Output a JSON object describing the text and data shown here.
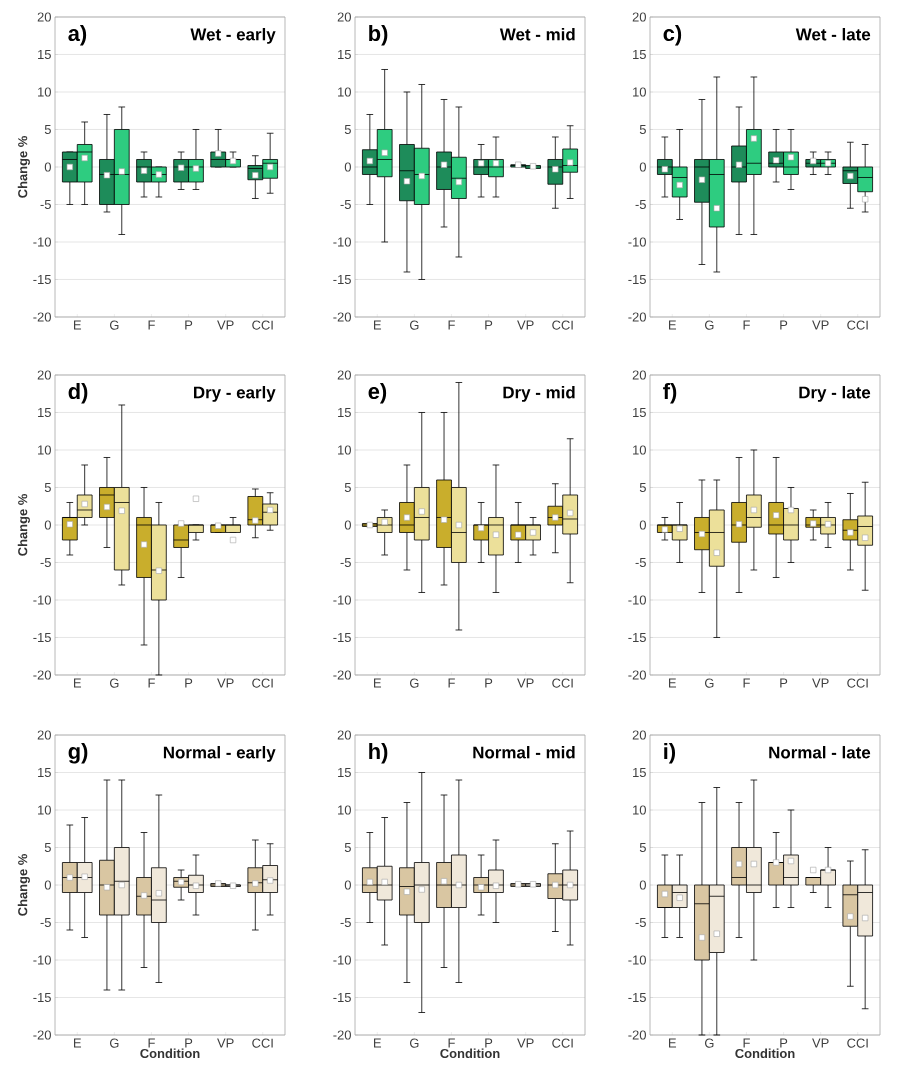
{
  "chart_data": [
    {
      "type": "box",
      "title": "Wet - early",
      "annotations": [
        "a)"
      ],
      "ylabel": "Change %",
      "categories": [
        "E",
        "G",
        "F",
        "P",
        "VP",
        "CCI"
      ],
      "ylim": [
        -20,
        20
      ],
      "yticks": [
        -20,
        -15,
        -10,
        -5,
        0,
        5,
        10,
        15,
        20
      ],
      "grid": "y",
      "series": [
        {
          "color": "#1e8c5a",
          "boxes": [
            {
              "low": -5,
              "q1": -2,
              "median": 1,
              "q3": 2,
              "high": 2,
              "mean": 0
            },
            {
              "low": -6,
              "q1": -5,
              "median": -1,
              "q3": 1,
              "high": 7,
              "mean": -1.1
            },
            {
              "low": -4,
              "q1": -2,
              "median": 0,
              "q3": 1,
              "high": 2,
              "mean": -0.5
            },
            {
              "low": -3,
              "q1": -2,
              "median": 0,
              "q3": 1,
              "high": 2,
              "mean": -0.1
            },
            {
              "low": 0,
              "q1": 0,
              "median": 1,
              "q3": 2,
              "high": 5,
              "mean": 1.8
            },
            {
              "low": -4.2,
              "q1": -1.7,
              "median": -0.2,
              "q3": 0.2,
              "high": 1.5,
              "mean": -1.1
            }
          ]
        },
        {
          "color": "#2ecc80",
          "boxes": [
            {
              "low": -5,
              "q1": -2,
              "median": 2,
              "q3": 3,
              "high": 6,
              "mean": 1.2
            },
            {
              "low": -9,
              "q1": -5,
              "median": -1,
              "q3": 5,
              "high": 8,
              "mean": -0.6
            },
            {
              "low": -4,
              "q1": -2,
              "median": -1,
              "q3": 0,
              "high": 0,
              "mean": -1
            },
            {
              "low": -3,
              "q1": -2,
              "median": 0,
              "q3": 1,
              "high": 5,
              "mean": -0.2
            },
            {
              "low": 0,
              "q1": 0,
              "median": 1,
              "q3": 1,
              "high": 2,
              "mean": 0.8
            },
            {
              "low": -3.5,
              "q1": -1.5,
              "median": 0.5,
              "q3": 1,
              "high": 4.5,
              "mean": 0
            }
          ]
        }
      ]
    },
    {
      "type": "box",
      "title": "Wet - mid",
      "annotations": [
        "b)"
      ],
      "categories": [
        "E",
        "G",
        "F",
        "P",
        "VP",
        "CCI"
      ],
      "ylim": [
        -20,
        20
      ],
      "yticks": [
        -20,
        -15,
        -10,
        -5,
        0,
        5,
        10,
        15,
        20
      ],
      "grid": "y",
      "series": [
        {
          "color": "#1e8c5a",
          "boxes": [
            {
              "low": -5,
              "q1": -1,
              "median": 0,
              "q3": 2.3,
              "high": 7,
              "mean": 0.8
            },
            {
              "low": -14,
              "q1": -4.5,
              "median": -0.5,
              "q3": 3,
              "high": 10,
              "mean": -1.9
            },
            {
              "low": -8,
              "q1": -3,
              "median": 0,
              "q3": 2,
              "high": 9,
              "mean": 0.3
            },
            {
              "low": -4,
              "q1": -1,
              "median": 0,
              "q3": 1,
              "high": 3,
              "mean": 0.5
            },
            {
              "low": 0,
              "q1": 0,
              "median": 0.2,
              "q3": 0.3,
              "high": 0.3,
              "mean": 0.3
            },
            {
              "low": -5.5,
              "q1": -2.3,
              "median": 0,
              "q3": 1,
              "high": 4,
              "mean": -0.3
            }
          ]
        },
        {
          "color": "#2ecc80",
          "boxes": [
            {
              "low": -10,
              "q1": -1.3,
              "median": 1,
              "q3": 5,
              "high": 13,
              "mean": 1.9
            },
            {
              "low": -15,
              "q1": -5,
              "median": -1,
              "q3": 2.5,
              "high": 11,
              "mean": -1.2
            },
            {
              "low": -12,
              "q1": -4.2,
              "median": -1.5,
              "q3": 1.3,
              "high": 8,
              "mean": -2
            },
            {
              "low": -4,
              "q1": -1.3,
              "median": 0,
              "q3": 1,
              "high": 4,
              "mean": 0.5
            },
            {
              "low": -0.2,
              "q1": -0.2,
              "median": 0,
              "q3": 0.2,
              "high": 0.2,
              "mean": 0.1
            },
            {
              "low": -4.2,
              "q1": -0.7,
              "median": 0.2,
              "q3": 2.4,
              "high": 5.5,
              "mean": 0.6
            }
          ]
        }
      ]
    },
    {
      "type": "box",
      "title": "Wet - late",
      "annotations": [
        "c)"
      ],
      "categories": [
        "E",
        "G",
        "F",
        "P",
        "VP",
        "CCI"
      ],
      "ylim": [
        -20,
        20
      ],
      "yticks": [
        -20,
        -15,
        -10,
        -5,
        0,
        5,
        10,
        15,
        20
      ],
      "grid": "y",
      "series": [
        {
          "color": "#1e8c5a",
          "boxes": [
            {
              "low": -4,
              "q1": -1,
              "median": 0,
              "q3": 1,
              "high": 4,
              "mean": -0.3
            },
            {
              "low": -13,
              "q1": -4.7,
              "median": 0,
              "q3": 1,
              "high": 9,
              "mean": -1.7
            },
            {
              "low": -9,
              "q1": -2,
              "median": 0,
              "q3": 2.8,
              "high": 8,
              "mean": 0.3
            },
            {
              "low": -2,
              "q1": 0,
              "median": 0.5,
              "q3": 2,
              "high": 5,
              "mean": 0.9
            },
            {
              "low": -1,
              "q1": 0,
              "median": 0.5,
              "q3": 1,
              "high": 2,
              "mean": 0.8
            },
            {
              "low": -5.5,
              "q1": -2.2,
              "median": -0.5,
              "q3": 0,
              "high": 3.3,
              "mean": -1.2
            }
          ]
        },
        {
          "color": "#2ecc80",
          "boxes": [
            {
              "low": -7,
              "q1": -4,
              "median": -1.4,
              "q3": 0,
              "high": 5,
              "mean": -2.4
            },
            {
              "low": -14,
              "q1": -8,
              "median": -1,
              "q3": 1,
              "high": 12,
              "mean": -5.5
            },
            {
              "low": -9,
              "q1": -1,
              "median": 0.5,
              "q3": 5,
              "high": 12,
              "mean": 3.8
            },
            {
              "low": -3,
              "q1": -1,
              "median": 0,
              "q3": 2,
              "high": 5,
              "mean": 1.3
            },
            {
              "low": -1,
              "q1": 0,
              "median": 0.5,
              "q3": 1,
              "high": 2,
              "mean": 0.5
            },
            {
              "low": -6,
              "q1": -3.3,
              "median": -1.4,
              "q3": 0,
              "high": 3,
              "mean": -4.3
            }
          ]
        }
      ]
    },
    {
      "type": "box",
      "title": "Dry - early",
      "annotations": [
        "d)"
      ],
      "ylabel": "Change %",
      "categories": [
        "E",
        "G",
        "F",
        "P",
        "VP",
        "CCI"
      ],
      "ylim": [
        -20,
        20
      ],
      "yticks": [
        -20,
        -15,
        -10,
        -5,
        0,
        5,
        10,
        15,
        20
      ],
      "grid": "y",
      "series": [
        {
          "color": "#c9ae2c",
          "boxes": [
            {
              "low": -4,
              "q1": -2,
              "median": 1,
              "q3": 1,
              "high": 3,
              "mean": 0.1
            },
            {
              "low": -3,
              "q1": 1,
              "median": 4,
              "q3": 5,
              "high": 9,
              "mean": 2.4
            },
            {
              "low": -16,
              "q1": -7,
              "median": 0,
              "q3": 1,
              "high": 5,
              "mean": -2.6
            },
            {
              "low": -7,
              "q1": -3,
              "median": -2,
              "q3": 0,
              "high": 0,
              "mean": 0.2
            },
            {
              "low": -1,
              "q1": -1,
              "median": 0,
              "q3": 0,
              "high": 0,
              "mean": -0.1
            },
            {
              "low": -1.7,
              "q1": 0,
              "median": 0.7,
              "q3": 3.8,
              "high": 4.8,
              "mean": 0.6
            }
          ]
        },
        {
          "color": "#ece09a",
          "boxes": [
            {
              "low": 0,
              "q1": 1,
              "median": 2,
              "q3": 4,
              "high": 8,
              "mean": 2.8
            },
            {
              "low": -8,
              "q1": -6,
              "median": 3,
              "q3": 5,
              "high": 16,
              "mean": 1.9
            },
            {
              "low": -20,
              "q1": -10,
              "median": -6,
              "q3": 0,
              "high": 3,
              "mean": -6.1
            },
            {
              "low": -2,
              "q1": -1,
              "median": 0,
              "q3": 0,
              "high": 0,
              "mean": 3.5
            },
            {
              "low": -1,
              "q1": -1,
              "median": 0,
              "q3": 0,
              "high": 1,
              "mean": -2
            },
            {
              "low": -0.7,
              "q1": 0,
              "median": 1.7,
              "q3": 2.8,
              "high": 4.3,
              "mean": 2
            }
          ]
        }
      ]
    },
    {
      "type": "box",
      "title": "Dry - mid",
      "annotations": [
        "e)"
      ],
      "categories": [
        "E",
        "G",
        "F",
        "P",
        "VP",
        "CCI"
      ],
      "ylim": [
        -20,
        20
      ],
      "yticks": [
        -20,
        -15,
        -10,
        -5,
        0,
        5,
        10,
        15,
        20
      ],
      "grid": "y",
      "series": [
        {
          "color": "#c9ae2c",
          "boxes": [
            {
              "low": -0.2,
              "q1": -0.2,
              "median": 0,
              "q3": 0.2,
              "high": 0.2,
              "mean": 0
            },
            {
              "low": -6,
              "q1": -1,
              "median": 0,
              "q3": 3,
              "high": 8,
              "mean": 1
            },
            {
              "low": -8,
              "q1": -3,
              "median": 1,
              "q3": 6,
              "high": 15,
              "mean": 0.7
            },
            {
              "low": -5,
              "q1": -2,
              "median": 0,
              "q3": 0,
              "high": 3,
              "mean": -0.4
            },
            {
              "low": -5,
              "q1": -2,
              "median": 0,
              "q3": 0,
              "high": 3,
              "mean": -1.3
            },
            {
              "low": -3.7,
              "q1": 0,
              "median": 1,
              "q3": 2.5,
              "high": 5.5,
              "mean": 1
            }
          ]
        },
        {
          "color": "#ece09a",
          "boxes": [
            {
              "low": -4,
              "q1": -1,
              "median": 0,
              "q3": 1,
              "high": 2,
              "mean": 0.4
            },
            {
              "low": -9,
              "q1": -2,
              "median": 1,
              "q3": 5,
              "high": 15,
              "mean": 1.8
            },
            {
              "low": -14,
              "q1": -5,
              "median": -1,
              "q3": 5,
              "high": 19,
              "mean": 0
            },
            {
              "low": -9,
              "q1": -4,
              "median": 0,
              "q3": 1,
              "high": 8,
              "mean": -1.3
            },
            {
              "low": -4,
              "q1": -2,
              "median": 0,
              "q3": 0,
              "high": 1,
              "mean": -1
            },
            {
              "low": -7.7,
              "q1": -1.2,
              "median": 0.8,
              "q3": 4,
              "high": 11.5,
              "mean": 1.6
            }
          ]
        }
      ]
    },
    {
      "type": "box",
      "title": "Dry - late",
      "annotations": [
        "f)"
      ],
      "categories": [
        "E",
        "G",
        "F",
        "P",
        "VP",
        "CCI"
      ],
      "ylim": [
        -20,
        20
      ],
      "yticks": [
        -20,
        -15,
        -10,
        -5,
        0,
        5,
        10,
        15,
        20
      ],
      "grid": "y",
      "series": [
        {
          "color": "#c9ae2c",
          "boxes": [
            {
              "low": -2,
              "q1": -1,
              "median": 0,
              "q3": 0,
              "high": 1,
              "mean": -0.6
            },
            {
              "low": -9,
              "q1": -3.3,
              "median": -1,
              "q3": 1,
              "high": 6,
              "mean": -1.2
            },
            {
              "low": -9,
              "q1": -2.3,
              "median": 0,
              "q3": 3,
              "high": 9,
              "mean": 0.1
            },
            {
              "low": -7,
              "q1": -1.2,
              "median": 0,
              "q3": 3,
              "high": 9,
              "mean": 1.3
            },
            {
              "low": -2,
              "q1": -0.3,
              "median": 0,
              "q3": 1,
              "high": 2,
              "mean": 0.2
            },
            {
              "low": -6,
              "q1": -2,
              "median": -0.7,
              "q3": 0.7,
              "high": 4.2,
              "mean": -1
            }
          ]
        },
        {
          "color": "#ece09a",
          "boxes": [
            {
              "low": -5,
              "q1": -2,
              "median": 0,
              "q3": 0,
              "high": 3,
              "mean": -0.5
            },
            {
              "low": -15,
              "q1": -5.5,
              "median": -1,
              "q3": 2,
              "high": 6,
              "mean": -3.7
            },
            {
              "low": -6,
              "q1": -0.3,
              "median": 1,
              "q3": 4,
              "high": 10,
              "mean": 2
            },
            {
              "low": -5,
              "q1": -2,
              "median": 0,
              "q3": 2.2,
              "high": 5,
              "mean": 2
            },
            {
              "low": -3,
              "q1": -1.2,
              "median": 0,
              "q3": 1,
              "high": 3,
              "mean": 0.1
            },
            {
              "low": -8.7,
              "q1": -2.7,
              "median": -0.2,
              "q3": 1.2,
              "high": 5.7,
              "mean": -1.7
            }
          ]
        }
      ]
    },
    {
      "type": "box",
      "title": "Normal - early",
      "annotations": [
        "g)"
      ],
      "ylabel": "Change %",
      "xlabel": "Condition",
      "categories": [
        "E",
        "G",
        "F",
        "P",
        "VP",
        "CCI"
      ],
      "ylim": [
        -20,
        20
      ],
      "yticks": [
        -20,
        -15,
        -10,
        -5,
        0,
        5,
        10,
        15,
        20
      ],
      "grid": "y",
      "series": [
        {
          "color": "#d9c6a2",
          "boxes": [
            {
              "low": -6,
              "q1": -1,
              "median": 1,
              "q3": 3,
              "high": 8,
              "mean": 1
            },
            {
              "low": -14,
              "q1": -4,
              "median": 0,
              "q3": 3.3,
              "high": 14,
              "mean": -0.3
            },
            {
              "low": -11,
              "q1": -4,
              "median": -1.5,
              "q3": 1,
              "high": 7,
              "mean": -1.4
            },
            {
              "low": -2,
              "q1": -0.3,
              "median": 0.5,
              "q3": 1,
              "high": 2,
              "mean": 0.4
            },
            {
              "low": -0.2,
              "q1": -0.2,
              "median": 0,
              "q3": 0.2,
              "high": 0.2,
              "mean": 0.2
            },
            {
              "low": -6,
              "q1": -1,
              "median": 0.3,
              "q3": 2.3,
              "high": 6,
              "mean": 0.2
            }
          ]
        },
        {
          "color": "#f0e8da",
          "boxes": [
            {
              "low": -7,
              "q1": -1,
              "median": 1,
              "q3": 3,
              "high": 9,
              "mean": 1.1
            },
            {
              "low": -14,
              "q1": -4,
              "median": 0.5,
              "q3": 5,
              "high": 14,
              "mean": 0
            },
            {
              "low": -13,
              "q1": -5,
              "median": -2,
              "q3": 2.3,
              "high": 12,
              "mean": -1.1
            },
            {
              "low": -4,
              "q1": -1,
              "median": 0,
              "q3": 1.3,
              "high": 4,
              "mean": -0.1
            },
            {
              "low": -0.2,
              "q1": -0.2,
              "median": 0,
              "q3": 0,
              "high": 0,
              "mean": -0.1
            },
            {
              "low": -4,
              "q1": -1,
              "median": 0.7,
              "q3": 2.6,
              "high": 5.5,
              "mean": 0.6
            }
          ]
        }
      ]
    },
    {
      "type": "box",
      "title": "Normal - mid",
      "annotations": [
        "h)"
      ],
      "xlabel": "Condition",
      "categories": [
        "E",
        "G",
        "F",
        "P",
        "VP",
        "CCI"
      ],
      "ylim": [
        -20,
        20
      ],
      "yticks": [
        -20,
        -15,
        -10,
        -5,
        0,
        5,
        10,
        15,
        20
      ],
      "grid": "y",
      "series": [
        {
          "color": "#d9c6a2",
          "boxes": [
            {
              "low": -5,
              "q1": -1,
              "median": 0,
              "q3": 2.3,
              "high": 7,
              "mean": 0.4
            },
            {
              "low": -13,
              "q1": -4,
              "median": -0.2,
              "q3": 2.3,
              "high": 11,
              "mean": -0.9
            },
            {
              "low": -11,
              "q1": -3,
              "median": 0,
              "q3": 3,
              "high": 12,
              "mean": 0.5
            },
            {
              "low": -4,
              "q1": -1,
              "median": 0,
              "q3": 1,
              "high": 4,
              "mean": -0.3
            },
            {
              "low": -0.2,
              "q1": -0.2,
              "median": 0,
              "q3": 0.2,
              "high": 0.2,
              "mean": 0.1
            },
            {
              "low": -6.2,
              "q1": -1.8,
              "median": 0,
              "q3": 1.5,
              "high": 5.5,
              "mean": 0
            }
          ]
        },
        {
          "color": "#f0e8da",
          "boxes": [
            {
              "low": -8,
              "q1": -2,
              "median": 0,
              "q3": 2.5,
              "high": 9,
              "mean": 0.4
            },
            {
              "low": -17,
              "q1": -5,
              "median": 0,
              "q3": 3,
              "high": 15,
              "mean": -0.6
            },
            {
              "low": -13,
              "q1": -3,
              "median": 0,
              "q3": 4,
              "high": 14,
              "mean": 0
            },
            {
              "low": -5,
              "q1": -1,
              "median": 0,
              "q3": 2,
              "high": 6,
              "mean": -0.1
            },
            {
              "low": -0.2,
              "q1": -0.2,
              "median": 0,
              "q3": 0.2,
              "high": 0.2,
              "mean": 0.1
            },
            {
              "low": -8,
              "q1": -2,
              "median": 0,
              "q3": 2,
              "high": 7.2,
              "mean": 0
            }
          ]
        }
      ]
    },
    {
      "type": "box",
      "title": "Normal - late",
      "annotations": [
        "i)"
      ],
      "xlabel": "Condition",
      "categories": [
        "E",
        "G",
        "F",
        "P",
        "VP",
        "CCI"
      ],
      "ylim": [
        -20,
        20
      ],
      "yticks": [
        -20,
        -15,
        -10,
        -5,
        0,
        5,
        10,
        15,
        20
      ],
      "grid": "y",
      "series": [
        {
          "color": "#d9c6a2",
          "boxes": [
            {
              "low": -7,
              "q1": -3,
              "median": -3,
              "q3": 0,
              "high": 4,
              "mean": -1.2
            },
            {
              "low": -20,
              "q1": -10,
              "median": -2.5,
              "q3": 0,
              "high": 11,
              "mean": -7
            },
            {
              "low": -7,
              "q1": 0,
              "median": 1,
              "q3": 5,
              "high": 11,
              "mean": 2.8
            },
            {
              "low": -3,
              "q1": 0,
              "median": 3,
              "q3": 3,
              "high": 7,
              "mean": 3
            },
            {
              "low": -1,
              "q1": 0,
              "median": 1,
              "q3": 1,
              "high": 1,
              "mean": 2
            },
            {
              "low": -13.5,
              "q1": -5.5,
              "median": -1.3,
              "q3": 0,
              "high": 3.2,
              "mean": -4.2
            }
          ]
        },
        {
          "color": "#f0e8da",
          "boxes": [
            {
              "low": -7,
              "q1": -3,
              "median": -1,
              "q3": 0,
              "high": 4,
              "mean": -1.7
            },
            {
              "low": -20,
              "q1": -9,
              "median": -1.5,
              "q3": 0,
              "high": 13,
              "mean": -6.5
            },
            {
              "low": -10,
              "q1": -1,
              "median": 0,
              "q3": 5,
              "high": 14,
              "mean": 2.8
            },
            {
              "low": -3,
              "q1": 0,
              "median": 1,
              "q3": 4,
              "high": 10,
              "mean": 3.2
            },
            {
              "low": -3,
              "q1": 0,
              "median": 2,
              "q3": 2,
              "high": 5,
              "mean": 2
            },
            {
              "low": -16.5,
              "q1": -6.8,
              "median": -1,
              "q3": 0,
              "high": 4.7,
              "mean": -4.4
            }
          ]
        }
      ]
    }
  ]
}
